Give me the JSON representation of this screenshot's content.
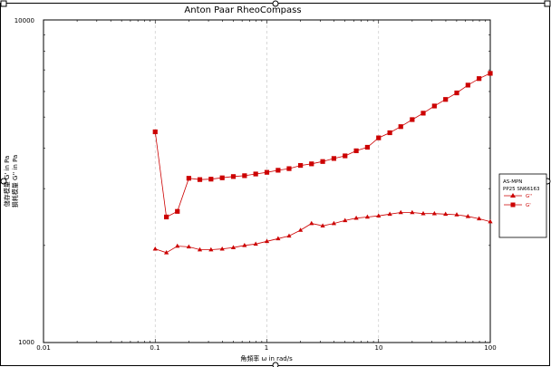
{
  "window": {
    "title": "Anton Paar RheoCompass"
  },
  "chart_data": {
    "type": "scatter",
    "title": "Anton Paar RheoCompass",
    "xlabel": "角頻率 ω in rad/s",
    "ylabel_lines": [
      "儲存模量 G' in Pa",
      "損耗模量 G'' in Pa"
    ],
    "xscale": "log",
    "yscale": "log",
    "xlim": [
      0.01,
      100
    ],
    "ylim": [
      1000,
      10000
    ],
    "x_ticks": [
      "0.01",
      "0.1",
      "1",
      "10",
      "100"
    ],
    "y_ticks": [
      "1000",
      "10000"
    ],
    "grid": {
      "x": true,
      "y": false
    },
    "legend": {
      "placement": "right",
      "title": "AS-MPN",
      "subtitle": "PP25 SN66163",
      "entries": [
        "G''",
        "G'"
      ]
    },
    "colors": {
      "series": "#cc0000",
      "axis": "#000000",
      "grid": "#c8c8c8"
    },
    "x": [
      0.1,
      0.126,
      0.158,
      0.2,
      0.251,
      0.316,
      0.398,
      0.501,
      0.631,
      0.794,
      1.0,
      1.26,
      1.58,
      2.0,
      2.51,
      3.16,
      3.98,
      5.01,
      6.31,
      7.94,
      10.0,
      12.6,
      15.8,
      20.0,
      25.1,
      31.6,
      39.8,
      50.1,
      63.1,
      79.4,
      100
    ],
    "series": [
      {
        "name": "G''",
        "marker": "triangle",
        "values": [
          1950,
          1900,
          1990,
          1980,
          1940,
          1940,
          1950,
          1970,
          2000,
          2020,
          2060,
          2100,
          2140,
          2230,
          2340,
          2300,
          2340,
          2390,
          2430,
          2450,
          2470,
          2500,
          2530,
          2530,
          2510,
          2510,
          2500,
          2490,
          2460,
          2420,
          2370
        ]
      },
      {
        "name": "G'",
        "marker": "square",
        "values": [
          4500,
          2450,
          2550,
          3230,
          3200,
          3210,
          3240,
          3270,
          3290,
          3330,
          3370,
          3420,
          3460,
          3540,
          3580,
          3640,
          3720,
          3790,
          3930,
          4030,
          4310,
          4470,
          4670,
          4910,
          5140,
          5410,
          5670,
          5940,
          6280,
          6580,
          6830
        ]
      }
    ]
  }
}
